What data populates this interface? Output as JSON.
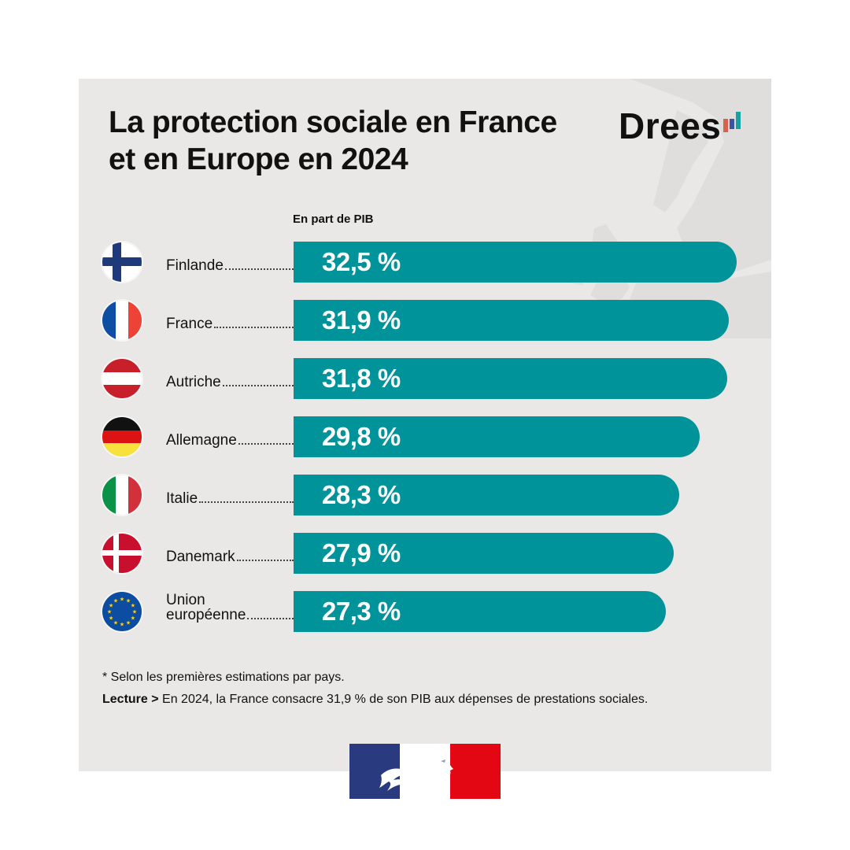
{
  "header": {
    "title_line1": "La protection sociale en France",
    "title_line2": "et en Europe en 2024",
    "logo_text": "Drees",
    "logo_bar_colors": [
      "#d9614b",
      "#3a55a4",
      "#19a0a0"
    ]
  },
  "colors": {
    "panel_background": "#e9e8e6",
    "bar": "#00939a",
    "bar_text": "#ffffff"
  },
  "chart_data": {
    "type": "bar",
    "orientation": "horizontal",
    "title": "La protection sociale en France et en Europe en 2024",
    "unit_label": "En part de PIB",
    "xlabel": "",
    "ylabel": "",
    "xlim": [
      0,
      32.5
    ],
    "grid": false,
    "legend": "none",
    "categories": [
      "Finlande",
      "France",
      "Autriche",
      "Allemagne",
      "Italie",
      "Danemark",
      "Union européenne"
    ],
    "values": [
      32.5,
      31.9,
      31.8,
      29.8,
      28.3,
      27.9,
      27.3
    ],
    "value_labels": [
      "32,5 %",
      "31,9 %",
      "31,8 %",
      "29,8 %",
      "28,3 %",
      "27,9 %",
      "27,3 %"
    ],
    "flag_icons": [
      "finland-flag-icon",
      "france-flag-icon",
      "austria-flag-icon",
      "germany-flag-icon",
      "italy-flag-icon",
      "denmark-flag-icon",
      "eu-flag-icon"
    ]
  },
  "rows": [
    {
      "label_line1": "Finlande",
      "label_line2": "",
      "value_label": "32,5 %"
    },
    {
      "label_line1": "France",
      "label_line2": "",
      "value_label": "31,9 %"
    },
    {
      "label_line1": "Autriche",
      "label_line2": "",
      "value_label": "31,8 %"
    },
    {
      "label_line1": "Allemagne",
      "label_line2": "",
      "value_label": "29,8 %"
    },
    {
      "label_line1": "Italie",
      "label_line2": "",
      "value_label": "28,3 %"
    },
    {
      "label_line1": "Danemark",
      "label_line2": "",
      "value_label": "27,9 %"
    },
    {
      "label_line1": "Union",
      "label_line2": "européenne",
      "value_label": "27,3 %"
    }
  ],
  "footer": {
    "footnote": "* Selon les premières estimations par pays.",
    "reading_label": "Lecture >",
    "reading_text": " En 2024, la France consacre 31,9 % de son PIB aux dépenses de prestations sociales."
  },
  "emblem": {
    "name": "republique-francaise-marianne-logo",
    "colors": [
      "#2a3a7e",
      "#ffffff",
      "#e30613"
    ]
  }
}
